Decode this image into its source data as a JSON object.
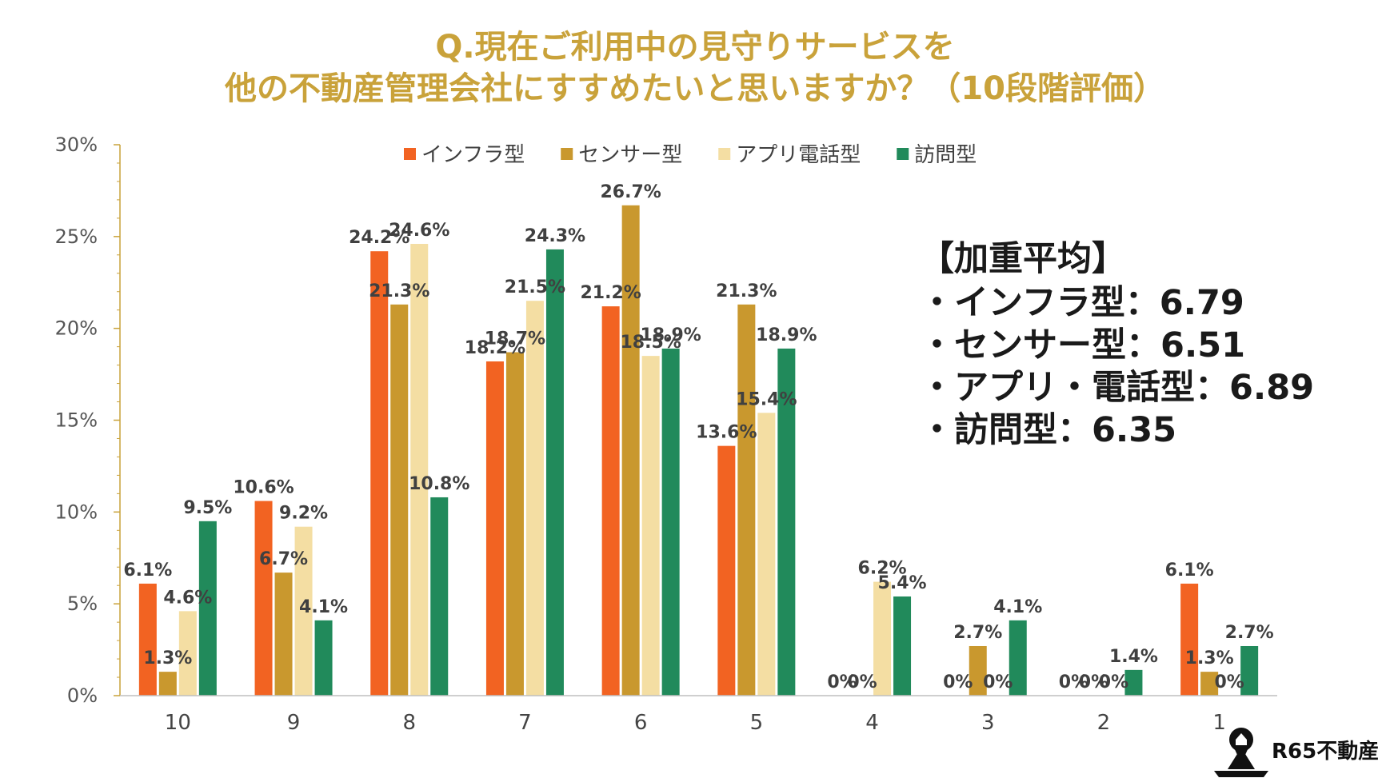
{
  "chart_data": {
    "type": "bar",
    "title": [
      "Q.現在ご利用中の見守りサービスを",
      "他の不動産管理会社にすすめたいと思いますか？（10段階評価）"
    ],
    "categories": [
      "10",
      "9",
      "8",
      "7",
      "6",
      "5",
      "4",
      "3",
      "2",
      "1"
    ],
    "series": [
      {
        "name": "インフラ型",
        "color": "#f26322",
        "values": [
          6.1,
          10.6,
          24.2,
          18.2,
          21.2,
          13.6,
          0,
          0,
          0,
          6.1
        ],
        "labels": [
          "6.1%",
          "10.6%",
          "24.2%",
          "18.2%",
          "21.2%",
          "13.6%",
          "0%",
          "0%",
          "0%",
          "6.1%"
        ]
      },
      {
        "name": "センサー型",
        "color": "#c9982e",
        "values": [
          1.3,
          6.7,
          21.3,
          18.7,
          26.7,
          21.3,
          0,
          2.7,
          0,
          1.3
        ],
        "labels": [
          "1.3%",
          "6.7%",
          "21.3%",
          "18.7%",
          "26.7%",
          "21.3%",
          "0%",
          "2.7%",
          "0%",
          "1.3%"
        ]
      },
      {
        "name": "アプリ電話型",
        "color": "#f4dea3",
        "values": [
          4.6,
          9.2,
          24.6,
          21.5,
          18.5,
          15.4,
          6.2,
          0,
          0,
          0
        ],
        "labels": [
          "4.6%",
          "9.2%",
          "24.6%",
          "21.5%",
          "18.5%",
          "15.4%",
          "6.2%",
          "0%",
          "0%",
          "0%"
        ]
      },
      {
        "name": "訪問型",
        "color": "#218a5b",
        "values": [
          9.5,
          4.1,
          10.8,
          24.3,
          18.9,
          18.9,
          5.4,
          4.1,
          1.4,
          2.7
        ],
        "labels": [
          "9.5%",
          "4.1%",
          "10.8%",
          "24.3%",
          "18.9%",
          "18.9%",
          "5.4%",
          "4.1%",
          "1.4%",
          "2.7%"
        ]
      }
    ],
    "yticks": [
      "0%",
      "5%",
      "10%",
      "15%",
      "20%",
      "25%",
      "30%"
    ],
    "ylim": [
      0,
      30
    ],
    "xlabel": "",
    "ylabel": "",
    "legend_position": "top"
  },
  "summary": {
    "heading": "【加重平均】",
    "lines": [
      "・インフラ型：6.79",
      "・センサー型：6.51",
      "・アプリ・電話型：6.89",
      "・訪問型：6.35"
    ]
  },
  "logo": {
    "text": "R65不動産"
  }
}
